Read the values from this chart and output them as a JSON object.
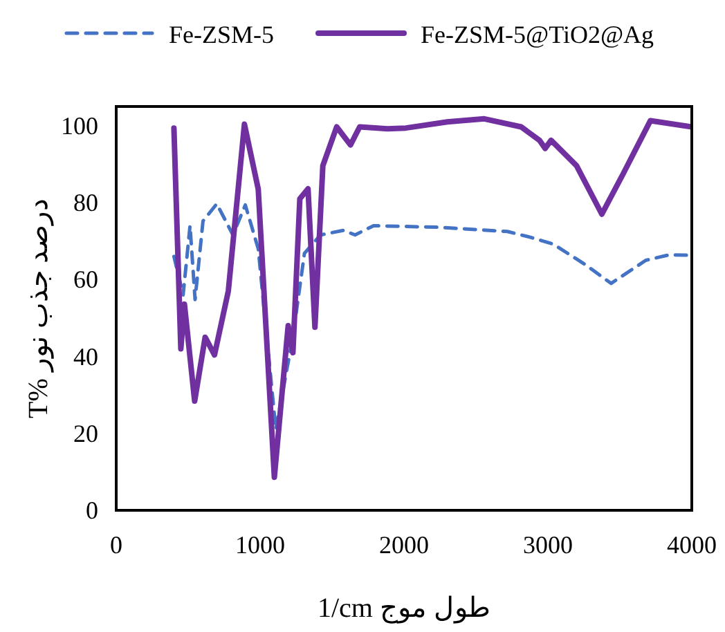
{
  "chart_data": {
    "type": "line",
    "xlabel": "طول موج 1/cm",
    "ylabel": "T% درصد جذب نور",
    "xlim": [
      0,
      4000
    ],
    "xticks": [
      0,
      1000,
      2000,
      3000,
      4000
    ],
    "ylim": [
      0,
      105
    ],
    "yticks": [
      0,
      20,
      40,
      60,
      80,
      100
    ],
    "grid": false,
    "legend": "top",
    "marker": "none",
    "series": [
      {
        "name": "Fe-ZSM-5",
        "color": "#4472c4",
        "line_style": "dashed",
        "x": [
          401,
          465,
          513,
          548,
          603,
          699,
          811,
          897,
          987,
          1109,
          1228,
          1308,
          1420,
          1580,
          1660,
          1788,
          2237,
          2718,
          2878,
          3038,
          3263,
          3439,
          3680,
          3840,
          4000
        ],
        "values": [
          66,
          56,
          74,
          54.8,
          75.2,
          79.7,
          71.6,
          79.4,
          68,
          21,
          45.2,
          66.8,
          71.6,
          72.8,
          71.6,
          74,
          73.6,
          72.5,
          71,
          69.2,
          63.8,
          59,
          65,
          66.4,
          66.3
        ]
      },
      {
        "name": "Fe-ZSM-5@TiO2@Ag",
        "color": "#7030a0",
        "line_style": "solid",
        "x": [
          401,
          449,
          474,
          545,
          618,
          683,
          779,
          891,
          987,
          1099,
          1195,
          1228,
          1276,
          1333,
          1381,
          1436,
          1532,
          1628,
          1692,
          1885,
          2013,
          2301,
          2558,
          2814,
          2942,
          2981,
          3022,
          3199,
          3375,
          3519,
          3712,
          4000
        ],
        "values": [
          99.4,
          42,
          53.6,
          28.4,
          45,
          40.4,
          57,
          100.4,
          83.5,
          8.6,
          48,
          41,
          81,
          83.6,
          47.6,
          89.6,
          99.7,
          95,
          99.7,
          99.2,
          99.4,
          101,
          101.8,
          99.7,
          96.2,
          94.1,
          96.2,
          89.6,
          77,
          87.2,
          101.3,
          99.7
        ]
      }
    ]
  }
}
